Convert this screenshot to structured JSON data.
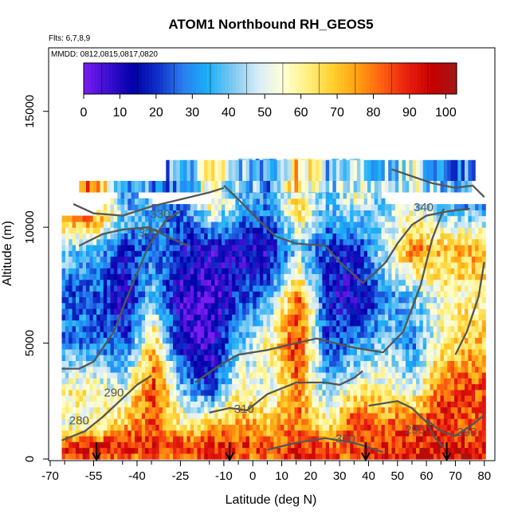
{
  "chart_data": {
    "type": "heatmap",
    "title": "ATOM1 Northbound RH_GEOS5",
    "flights_label": "Flts: 6,7,8,9",
    "dates_label": "MMDD: 0812,0815,0817,0820",
    "xlabel": "Latitude (deg N)",
    "ylabel": "Altitude (m)",
    "xlim": [
      -70,
      82
    ],
    "ylim": [
      0,
      17500
    ],
    "x_ticks": [
      "-70",
      "-55",
      "-40",
      "-25",
      "-10",
      "0",
      "10",
      "20",
      "30",
      "40",
      "50",
      "60",
      "70",
      "80"
    ],
    "x_tick_values": [
      -70,
      -55,
      -40,
      -25,
      -10,
      0,
      10,
      20,
      30,
      40,
      50,
      60,
      70,
      80
    ],
    "y_ticks": [
      "0",
      "5000",
      "10000",
      "15000"
    ],
    "y_tick_values": [
      0,
      5000,
      10000,
      15000
    ],
    "colorbar": {
      "ticks": [
        "0",
        "10",
        "20",
        "30",
        "40",
        "50",
        "60",
        "70",
        "80",
        "90",
        "100"
      ],
      "tick_values": [
        0,
        10,
        20,
        30,
        40,
        50,
        60,
        70,
        80,
        90,
        100
      ],
      "range": [
        0,
        103
      ],
      "colors": [
        "#7a1cf0",
        "#3a0fd0",
        "#0000a8",
        "#1030c8",
        "#2a7ef0",
        "#1ab0f8",
        "#7ec8f0",
        "#d8ecf8",
        "#ffffd8",
        "#fff080",
        "#ffd030",
        "#ffa010",
        "#ff6010",
        "#e82010",
        "#c80000",
        "#a01818"
      ]
    },
    "field_lat_range": [
      -66,
      80
    ],
    "field_alt_range": [
      0,
      12900
    ],
    "contour_labels": [
      "330",
      "320",
      "340",
      "290",
      "280",
      "310",
      "300",
      "290",
      "290"
    ],
    "flight_arrow_latitudes": [
      -54,
      -8,
      39,
      67
    ],
    "series": [
      {
        "lat": -55,
        "profile": [
          [
            0,
            85
          ],
          [
            500,
            90
          ],
          [
            1500,
            55
          ],
          [
            3000,
            60
          ],
          [
            5000,
            30
          ],
          [
            7000,
            25
          ],
          [
            9000,
            40
          ],
          [
            10500,
            80
          ]
        ]
      },
      {
        "lat": -45,
        "profile": [
          [
            0,
            80
          ],
          [
            500,
            95
          ],
          [
            1500,
            70
          ],
          [
            3000,
            50
          ],
          [
            5000,
            20
          ],
          [
            7000,
            10
          ],
          [
            9000,
            15
          ],
          [
            10500,
            40
          ],
          [
            11500,
            30
          ]
        ]
      },
      {
        "lat": -35,
        "profile": [
          [
            0,
            75
          ],
          [
            500,
            90
          ],
          [
            1500,
            85
          ],
          [
            3000,
            90
          ],
          [
            5000,
            70
          ],
          [
            7000,
            40
          ],
          [
            9000,
            30
          ],
          [
            11000,
            35
          ]
        ]
      },
      {
        "lat": -25,
        "profile": [
          [
            0,
            80
          ],
          [
            500,
            90
          ],
          [
            1500,
            60
          ],
          [
            3000,
            40
          ],
          [
            5000,
            10
          ],
          [
            7000,
            5
          ],
          [
            9000,
            15
          ],
          [
            11000,
            30
          ]
        ]
      },
      {
        "lat": -15,
        "profile": [
          [
            0,
            85
          ],
          [
            500,
            90
          ],
          [
            1500,
            70
          ],
          [
            3000,
            20
          ],
          [
            5000,
            5
          ],
          [
            7000,
            5
          ],
          [
            9000,
            10
          ],
          [
            11000,
            60
          ]
        ]
      },
      {
        "lat": -5,
        "profile": [
          [
            0,
            80
          ],
          [
            500,
            90
          ],
          [
            1500,
            75
          ],
          [
            3000,
            60
          ],
          [
            5000,
            40
          ],
          [
            7000,
            20
          ],
          [
            9000,
            10
          ],
          [
            11000,
            40
          ],
          [
            12500,
            25
          ]
        ]
      },
      {
        "lat": 5,
        "profile": [
          [
            0,
            80
          ],
          [
            500,
            85
          ],
          [
            1500,
            70
          ],
          [
            3000,
            50
          ],
          [
            5000,
            60
          ],
          [
            7000,
            30
          ],
          [
            9000,
            10
          ],
          [
            11000,
            30
          ],
          [
            12500,
            30
          ]
        ]
      },
      {
        "lat": 15,
        "profile": [
          [
            0,
            90
          ],
          [
            500,
            90
          ],
          [
            1500,
            80
          ],
          [
            3000,
            80
          ],
          [
            5000,
            90
          ],
          [
            7000,
            85
          ],
          [
            9000,
            40
          ],
          [
            11000,
            70
          ],
          [
            12500,
            30
          ]
        ]
      },
      {
        "lat": 25,
        "profile": [
          [
            0,
            85
          ],
          [
            500,
            85
          ],
          [
            1500,
            60
          ],
          [
            3000,
            40
          ],
          [
            5000,
            20
          ],
          [
            7000,
            15
          ],
          [
            9000,
            20
          ],
          [
            11000,
            40
          ],
          [
            12500,
            30
          ]
        ]
      },
      {
        "lat": 35,
        "profile": [
          [
            0,
            80
          ],
          [
            500,
            85
          ],
          [
            1500,
            90
          ],
          [
            3000,
            60
          ],
          [
            5000,
            30
          ],
          [
            7000,
            10
          ],
          [
            9000,
            15
          ],
          [
            11000,
            50
          ],
          [
            12500,
            70
          ]
        ]
      },
      {
        "lat": 45,
        "profile": [
          [
            0,
            90
          ],
          [
            500,
            90
          ],
          [
            1500,
            80
          ],
          [
            3000,
            60
          ],
          [
            5000,
            40
          ],
          [
            7000,
            30
          ],
          [
            9000,
            50
          ],
          [
            11000,
            40
          ]
        ]
      },
      {
        "lat": 55,
        "profile": [
          [
            0,
            90
          ],
          [
            500,
            90
          ],
          [
            1500,
            85
          ],
          [
            3000,
            50
          ],
          [
            5000,
            30
          ],
          [
            7000,
            40
          ],
          [
            9000,
            80
          ],
          [
            11000,
            50
          ]
        ]
      },
      {
        "lat": 65,
        "profile": [
          [
            0,
            95
          ],
          [
            500,
            95
          ],
          [
            1500,
            90
          ],
          [
            3000,
            85
          ],
          [
            5000,
            60
          ],
          [
            7000,
            55
          ],
          [
            9000,
            70
          ],
          [
            11000,
            35
          ]
        ]
      },
      {
        "lat": 75,
        "profile": [
          [
            0,
            90
          ],
          [
            500,
            90
          ],
          [
            1500,
            80
          ],
          [
            3000,
            85
          ],
          [
            5000,
            70
          ],
          [
            7000,
            60
          ],
          [
            9000,
            75
          ],
          [
            11000,
            30
          ]
        ]
      }
    ]
  }
}
